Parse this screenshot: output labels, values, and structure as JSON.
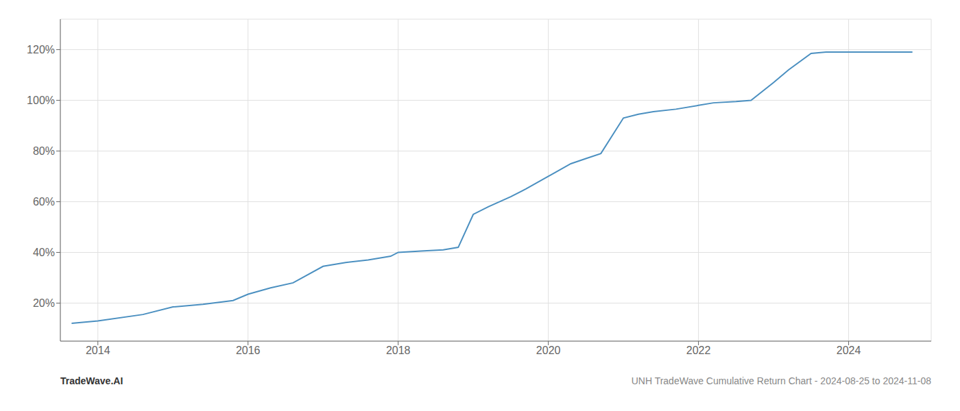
{
  "chart_data": {
    "type": "line",
    "x": [
      2013.65,
      2014.0,
      2014.6,
      2015.0,
      2015.4,
      2015.8,
      2016.0,
      2016.3,
      2016.6,
      2017.0,
      2017.3,
      2017.6,
      2017.9,
      2018.0,
      2018.3,
      2018.6,
      2018.8,
      2019.0,
      2019.2,
      2019.5,
      2019.7,
      2020.0,
      2020.3,
      2020.5,
      2020.7,
      2021.0,
      2021.2,
      2021.4,
      2021.7,
      2022.0,
      2022.2,
      2022.5,
      2022.7,
      2023.0,
      2023.2,
      2023.5,
      2023.7,
      2024.0,
      2024.5,
      2024.85
    ],
    "values": [
      12,
      13,
      15.5,
      18.5,
      19.5,
      21.0,
      23.5,
      26.0,
      28.0,
      34.5,
      36.0,
      37.0,
      38.5,
      40.0,
      40.5,
      41.0,
      42.0,
      55.0,
      58.0,
      62.0,
      65.0,
      70.0,
      75.0,
      77.0,
      79.0,
      93.0,
      94.5,
      95.5,
      96.5,
      98.0,
      99.0,
      99.5,
      100.0,
      107.0,
      112.0,
      118.5,
      119.0,
      119.0,
      119.0,
      119.0
    ],
    "color": "#4a8fc0",
    "xlim": [
      2013.5,
      2025.1
    ],
    "ylim": [
      5,
      132
    ],
    "xticks": [
      2014,
      2016,
      2018,
      2020,
      2022,
      2024
    ],
    "yticks": [
      {
        "value": 20,
        "label": "20%"
      },
      {
        "value": 40,
        "label": "40%"
      },
      {
        "value": 60,
        "label": "60%"
      },
      {
        "value": 80,
        "label": "80%"
      },
      {
        "value": 100,
        "label": "100%"
      },
      {
        "value": 120,
        "label": "120%"
      }
    ],
    "grid": true,
    "annotations": [
      "TradeWave.AI",
      "UNH TradeWave Cumulative Return Chart - 2024-08-25 to 2024-11-08"
    ]
  }
}
